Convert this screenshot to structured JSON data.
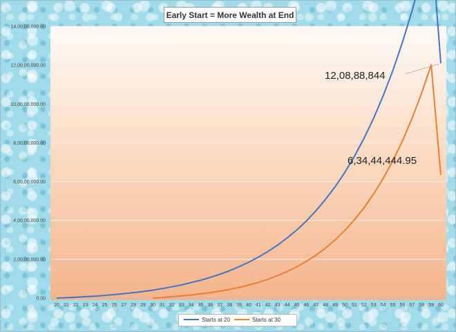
{
  "chart_data": {
    "type": "line",
    "title": "Early Start = More Wealth at End",
    "xlabel": "",
    "ylabel": "",
    "x": [
      20,
      21,
      22,
      23,
      24,
      25,
      26,
      27,
      28,
      29,
      30,
      31,
      32,
      33,
      34,
      35,
      36,
      37,
      38,
      39,
      40,
      41,
      42,
      43,
      44,
      45,
      46,
      47,
      48,
      49,
      50,
      51,
      52,
      53,
      54,
      55,
      56,
      57,
      58,
      59,
      60
    ],
    "xlim": [
      20,
      60
    ],
    "ylim": [
      0,
      140000000
    ],
    "y_ticks": [
      0,
      20000000,
      40000000,
      60000000,
      80000000,
      100000000,
      120000000,
      140000000
    ],
    "y_tick_labels": [
      "0.00",
      "2,00,00,000.00",
      "4,00,00,000.00",
      "6,00,00,000.00",
      "8,00,00,000.00",
      "10,00,00,000.00",
      "12,00,00,000.00",
      "14,00,00,000.00"
    ],
    "grid": true,
    "legend_position": "bottom",
    "series": [
      {
        "name": "Starts at 20",
        "color": "#4472c4",
        "x": [
          20,
          21,
          22,
          23,
          24,
          25,
          26,
          27,
          28,
          29,
          30,
          31,
          32,
          33,
          34,
          35,
          36,
          37,
          38,
          39,
          40,
          41,
          42,
          43,
          44,
          45,
          46,
          47,
          48,
          49,
          50,
          51,
          52,
          53,
          54,
          55,
          56,
          57,
          58,
          59,
          60
        ],
        "values": [
          0,
          200000,
          450000,
          750000,
          1000000,
          1400000,
          1800000,
          2300000,
          2800000,
          3400000,
          4100000,
          4900000,
          5800000,
          6800000,
          8000000,
          9200000,
          10700000,
          12300000,
          14100000,
          16200000,
          18500000,
          21100000,
          24000000,
          27300000,
          31000000,
          35100000,
          39700000,
          45000000,
          50900000,
          57400000,
          64700000,
          73000000,
          82300000,
          92600000,
          104200000,
          117100000,
          131700000,
          147800000,
          165800000,
          185600000,
          120888844
        ]
      },
      {
        "name": "Starts at 30",
        "color": "#ed7d31",
        "x": [
          30,
          31,
          32,
          33,
          34,
          35,
          36,
          37,
          38,
          39,
          40,
          41,
          42,
          43,
          44,
          45,
          46,
          47,
          48,
          49,
          50,
          51,
          52,
          53,
          54,
          55,
          56,
          57,
          58,
          59,
          60
        ],
        "values": [
          0,
          300000,
          700000,
          1100000,
          1600000,
          2200000,
          2800000,
          3600000,
          4500000,
          5500000,
          6700000,
          8100000,
          9700000,
          11600000,
          13700000,
          16100000,
          18900000,
          22100000,
          25800000,
          30000000,
          34800000,
          40300000,
          46500000,
          53600000,
          61600000,
          70700000,
          80900000,
          92500000,
          105500000,
          120200000,
          63444444.95
        ]
      }
    ],
    "annotations": [
      {
        "text": "12,08,88,844",
        "x": 60,
        "y": 120888844
      },
      {
        "text": "6,34,44,444.95",
        "x": 57,
        "y": 70000000
      }
    ]
  }
}
